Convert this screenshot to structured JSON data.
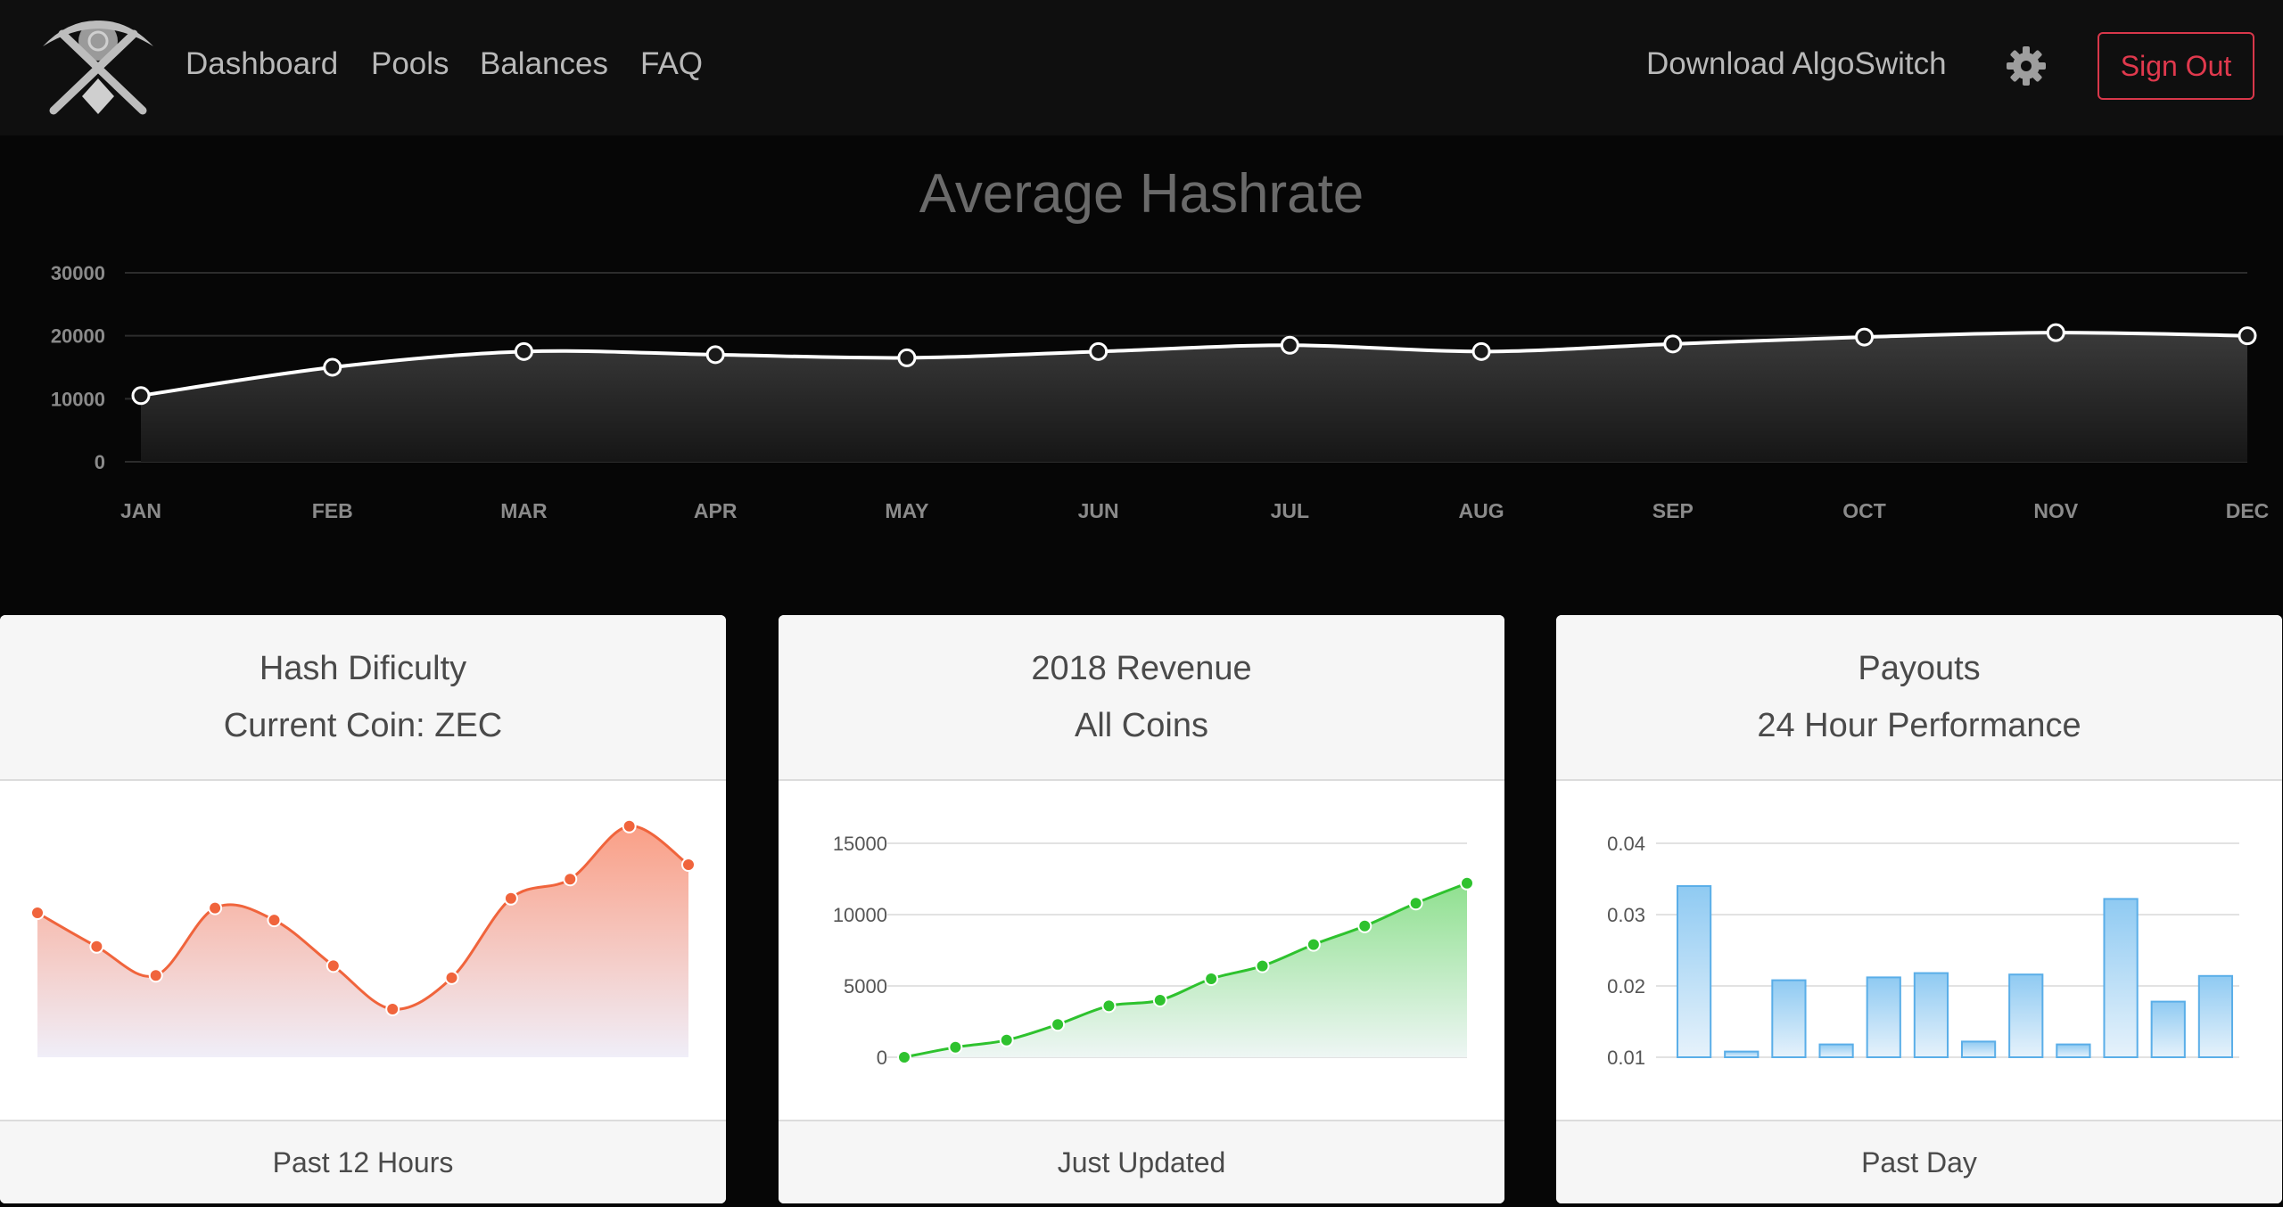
{
  "nav": {
    "links": [
      "Dashboard",
      "Pools",
      "Balances",
      "FAQ"
    ],
    "download": "Download AlgoSwitch",
    "signout": "Sign Out"
  },
  "colors": {
    "accent_red": "#e0394d",
    "orange": "#f0643c",
    "green": "#2ec22e",
    "blue": "#5aaee8"
  },
  "chart_data": [
    {
      "type": "line",
      "title": "Average Hashrate",
      "categories": [
        "JAN",
        "FEB",
        "MAR",
        "APR",
        "MAY",
        "JUN",
        "JUL",
        "AUG",
        "SEP",
        "OCT",
        "NOV",
        "DEC"
      ],
      "values": [
        10500,
        15000,
        17500,
        17000,
        16500,
        17500,
        18500,
        17500,
        18700,
        19800,
        20500,
        20000
      ],
      "yticks": [
        "0",
        "10000",
        "20000",
        "30000"
      ],
      "ylim": [
        0,
        30000
      ],
      "grid": true
    },
    {
      "type": "area",
      "header": [
        "Hash Dificulty",
        "Current Coin: ZEC"
      ],
      "footer": "Past 12 Hours",
      "values": [
        6.0,
        4.6,
        3.4,
        6.2,
        5.7,
        3.8,
        2.0,
        3.3,
        6.6,
        7.4,
        9.6,
        8.0
      ],
      "ylim": [
        0,
        10
      ],
      "color": "#f0643c"
    },
    {
      "type": "area",
      "header": [
        "2018 Revenue",
        "All Coins"
      ],
      "footer": "Just Updated",
      "values": [
        0,
        700,
        1200,
        2300,
        3600,
        4000,
        5500,
        6400,
        7900,
        9200,
        10800,
        12200
      ],
      "yticks": [
        "0",
        "5000",
        "10000",
        "15000"
      ],
      "ylim": [
        0,
        15000
      ],
      "color": "#2ec22e"
    },
    {
      "type": "bar",
      "header": [
        "Payouts",
        "24 Hour Performance"
      ],
      "footer": "Past Day",
      "values": [
        0.034,
        0.0108,
        0.0208,
        0.0118,
        0.0212,
        0.0218,
        0.0122,
        0.0216,
        0.0118,
        0.0322,
        0.0178,
        0.0214
      ],
      "yticks": [
        "0.01",
        "0.02",
        "0.03",
        "0.04"
      ],
      "ylim": [
        0.01,
        0.04
      ],
      "color": "#5aaee8"
    }
  ]
}
